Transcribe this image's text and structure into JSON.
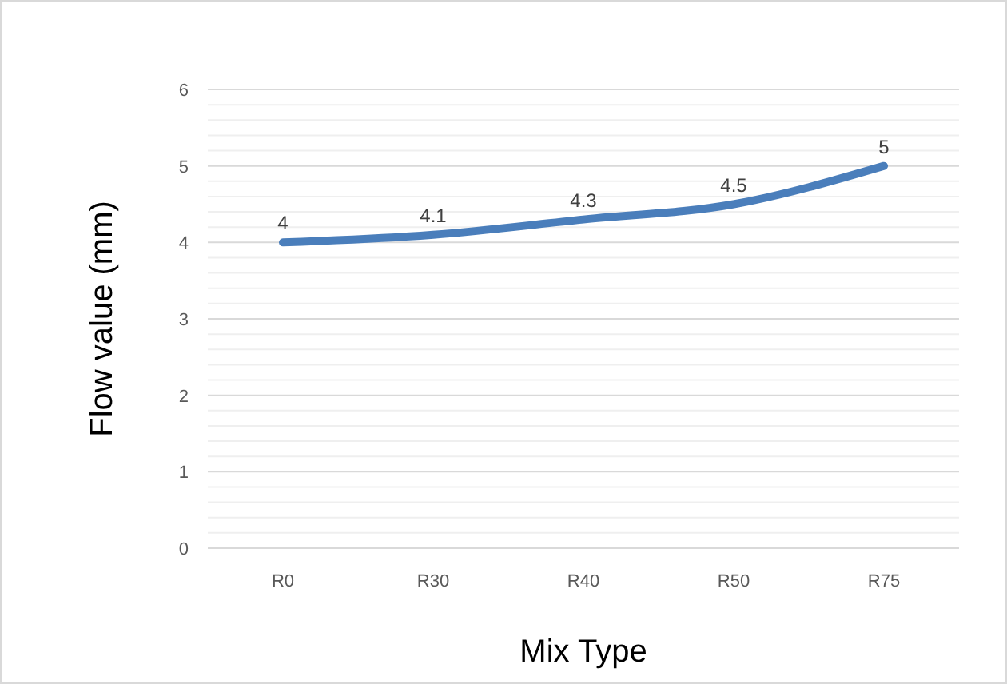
{
  "chart_data": {
    "type": "line",
    "xlabel": "Mix Type",
    "ylabel": "Flow value (mm)",
    "categories": [
      "R0",
      "R30",
      "R40",
      "R50",
      "R75"
    ],
    "series": [
      {
        "color": "#4a7ebb",
        "values": [
          4,
          4.1,
          4.3,
          4.5,
          5
        ]
      }
    ],
    "ylim": [
      0,
      6
    ],
    "yticks": [
      0,
      {
        "value": 0.2,
        "label": null
      },
      {
        "value": 0.4,
        "label": null
      },
      {
        "value": 0.6,
        "label": null
      },
      {
        "value": 0.8,
        "label": null
      },
      1,
      {
        "value": 1.2,
        "label": null
      },
      {
        "value": 1.4,
        "label": null
      },
      {
        "value": 1.6,
        "label": null
      },
      {
        "value": 1.8,
        "label": null
      },
      2,
      {
        "value": 2.2,
        "label": null
      },
      {
        "value": 2.4,
        "label": null
      },
      {
        "value": 2.6,
        "label": null
      },
      {
        "value": 2.8,
        "label": null
      },
      3,
      {
        "value": 3.2,
        "label": null
      },
      {
        "value": 3.4,
        "label": null
      },
      {
        "value": 3.6,
        "label": null
      },
      {
        "value": 3.8,
        "label": null
      },
      4,
      {
        "value": 4.2,
        "label": null
      },
      {
        "value": 4.4,
        "label": null
      },
      {
        "value": 4.6,
        "label": null
      },
      {
        "value": 4.8,
        "label": null
      },
      5,
      {
        "value": 5.2,
        "label": null
      },
      {
        "value": 5.4,
        "label": null
      },
      {
        "value": 5.6,
        "label": null
      },
      {
        "value": 5.8,
        "label": null
      },
      6
    ],
    "grid": "y",
    "data_labels": true,
    "marker": "none",
    "line_style": "solid"
  }
}
